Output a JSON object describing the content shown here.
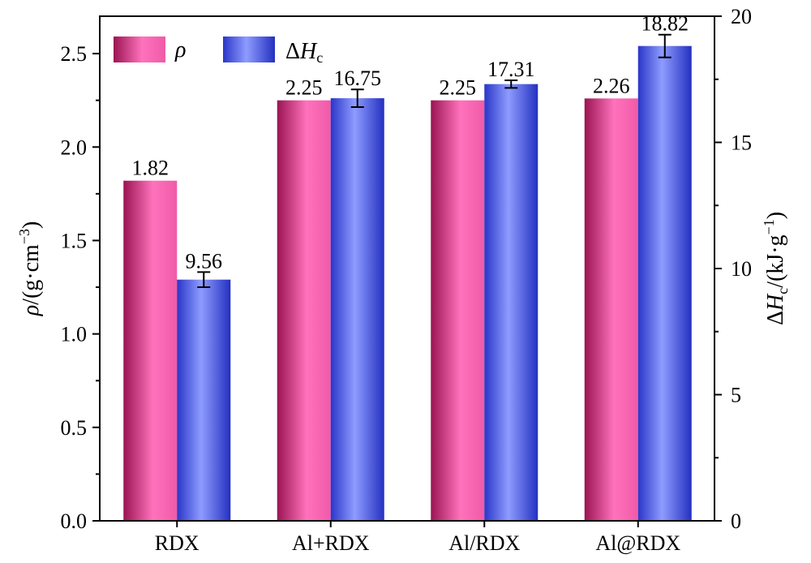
{
  "chart_data": {
    "type": "bar",
    "categories": [
      "RDX",
      "Al+RDX",
      "Al/RDX",
      "Al@RDX"
    ],
    "series": [
      {
        "name": "ρ",
        "axis": "left",
        "values": [
          1.82,
          2.25,
          2.25,
          2.26
        ],
        "labels": [
          "1.82",
          "2.25",
          "2.25",
          "2.26"
        ],
        "color": "#ec4c9c"
      },
      {
        "name": "ΔHc",
        "axis": "right",
        "values": [
          9.56,
          16.75,
          17.31,
          18.82
        ],
        "errors": [
          0.3,
          0.35,
          0.15,
          0.45
        ],
        "labels": [
          "9.56",
          "16.75",
          "17.31",
          "18.82"
        ],
        "color": "#5a6cf0"
      }
    ],
    "ylim_left": [
      0,
      2.7
    ],
    "ylim_right": [
      0,
      20
    ],
    "yticks_left": [
      "0.0",
      "0.5",
      "1.0",
      "1.5",
      "2.0",
      "2.5"
    ],
    "yticks_right": [
      "0",
      "5",
      "10",
      "15",
      "20"
    ],
    "ylabel_left": "ρ/(g·cm⁻³)",
    "ylabel_right": "ΔHc/(kJ·g⁻¹)",
    "legend_position": "top-left",
    "grid": false
  }
}
